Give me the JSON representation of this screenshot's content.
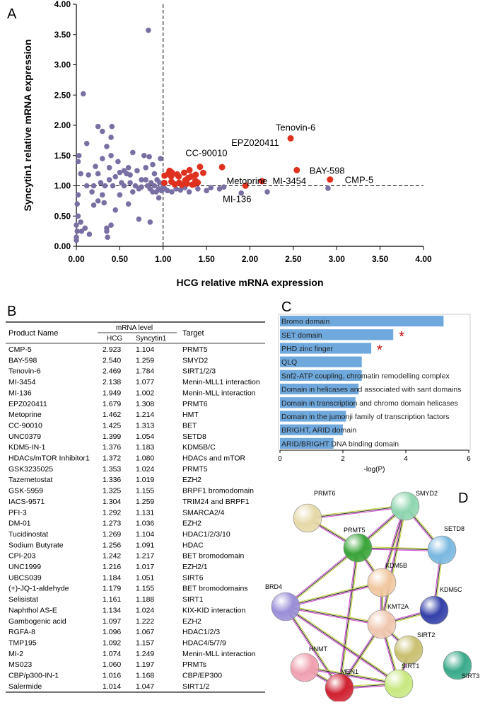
{
  "panel_labels": [
    "A",
    "B",
    "C",
    "D"
  ],
  "chart_data": [
    {
      "type": "scatter",
      "xlabel": "HCG relative mRNA expression",
      "ylabel": "Syncytin1 relative mRNA expression",
      "xlim": [
        0,
        4
      ],
      "ylim": [
        0,
        4
      ],
      "xticks": [
        {
          "value": 0,
          "label": "0.00"
        },
        {
          "value": 0.5,
          "label": "0.50"
        },
        {
          "value": 1,
          "label": "1.00"
        },
        {
          "value": 1.5,
          "label": "1.50"
        },
        {
          "value": 2,
          "label": "2.00"
        },
        {
          "value": 2.5,
          "label": "2.50"
        },
        {
          "value": 3,
          "label": "3.00"
        },
        {
          "value": 3.5,
          "label": "3.50"
        },
        {
          "value": 4,
          "label": "4.00"
        }
      ],
      "yticks": [
        {
          "value": 0,
          "label": "0.00"
        },
        {
          "value": 0.5,
          "label": "0.50"
        },
        {
          "value": 1,
          "label": "1.00"
        },
        {
          "value": 1.5,
          "label": "1.50"
        },
        {
          "value": 2,
          "label": "2.00"
        },
        {
          "value": 2.5,
          "label": "2.50"
        },
        {
          "value": 3,
          "label": "3.00"
        },
        {
          "value": 3.5,
          "label": "3.50"
        },
        {
          "value": 4,
          "label": "4.00"
        }
      ],
      "vlines": [
        1
      ],
      "hlines": [
        1
      ],
      "series": [
        {
          "color": "#7a6fa3",
          "x": [
            0,
            0,
            0.01,
            0,
            0.02,
            0.01,
            0.02,
            0.03,
            0.02,
            0.05,
            0.08,
            0.1,
            0.06,
            0.12,
            0.12,
            0.14,
            0.18,
            0.2,
            0.22,
            0.25,
            0.25,
            0.28,
            0.3,
            0.3,
            0.32,
            0.33,
            0.35,
            0.35,
            0.35,
            0.36,
            0.38,
            0.38,
            0.4,
            0.4,
            0.41,
            0.42,
            0.45,
            0.45,
            0.48,
            0.5,
            0.52,
            0.55,
            0.55,
            0.58,
            0.6,
            0.62,
            0.62,
            0.65,
            0.65,
            0.68,
            0.7,
            0.72,
            0.72,
            0.75,
            0.75,
            0.78,
            0.8,
            0.8,
            0.82,
            0.83,
            0.84,
            0.85,
            0.85,
            0.86,
            0.88,
            0.88,
            0.9,
            0.9,
            0.92,
            0.93,
            0.95,
            0.95,
            0.96,
            0.97,
            0.98,
            1,
            1.02,
            1.05,
            1.1,
            1.15,
            1.2,
            1.25,
            1.3,
            1.4,
            1.5,
            1.55,
            1.65,
            1.7,
            1.9,
            2.2,
            2.9,
            0.4,
            0.15,
            0.25,
            0.5,
            0.6,
            0.3,
            0.2,
            0.05
          ],
          "values": [
            0.1,
            0.15,
            0.25,
            0.35,
            0.5,
            0.7,
            0.85,
            1.5,
            1.4,
            1.2,
            2.52,
            0.3,
            0.25,
            1,
            1.7,
            1.18,
            0.9,
            0.68,
            1.32,
            1.98,
            1.2,
            1.05,
            0.85,
            1.9,
            0.72,
            1,
            1.65,
            0.3,
            0.25,
            0.15,
            1.3,
            1.1,
            1.5,
            1.8,
            1.98,
            1,
            0.6,
            1.15,
            1.4,
            1.22,
            1.05,
            1.25,
            1,
            1.2,
            1.3,
            1.18,
            1.05,
            1.55,
            0.9,
            1,
            1.25,
            0.95,
            0.45,
            1.1,
            0.98,
            1.5,
            1.3,
            1.1,
            1,
            3.57,
            1.48,
            0.95,
            0.4,
            1.05,
            1.35,
            0.9,
            1.2,
            1,
            0.9,
            1.1,
            0.95,
            0.8,
            1.05,
            1.45,
            0.92,
            0.98,
            0.95,
            0.92,
            0.9,
            0.95,
            0.93,
            0.97,
            0.9,
            0.95,
            0.92,
            0.97,
            0.95,
            0.98,
            0.88,
            0.9,
            0.96,
            0.35,
            0.2,
            0.75,
            0.85,
            0.7,
            1.45,
            1,
            0.4
          ]
        },
        {
          "color": "#e0311f",
          "x": [
            2.923,
            2.54,
            2.469,
            2.138,
            1.949,
            1.679,
            1.462,
            1.425,
            1.399,
            1.376,
            1.372,
            1.353,
            1.336,
            1.325,
            1.304,
            1.292,
            1.273,
            1.269,
            1.256,
            1.242,
            1.216,
            1.184,
            1.179,
            1.161,
            1.134,
            1.097,
            1.096,
            1.092,
            1.074,
            1.06,
            1.016,
            1.014
          ],
          "values": [
            1.104,
            1.259,
            1.784,
            1.077,
            1.002,
            1.308,
            1.214,
            1.313,
            1.054,
            1.183,
            1.08,
            1.024,
            1.019,
            1.155,
            1.259,
            1.131,
            1.036,
            1.104,
            1.091,
            1.217,
            1.017,
            1.051,
            1.155,
            1.188,
            1.024,
            1.222,
            1.067,
            1.157,
            1.249,
            1.197,
            1.168,
            1.047
          ]
        }
      ],
      "annotations": [
        {
          "text": "Tenovin-6",
          "x": 2.469,
          "y": 1.784
        },
        {
          "text": "CC-90010",
          "x": 1.425,
          "y": 1.313
        },
        {
          "text": "EPZ020411",
          "x": 1.679,
          "y": 1.308
        },
        {
          "text": "BAY-598",
          "x": 2.54,
          "y": 1.259
        },
        {
          "text": "Metoprine",
          "x": 1.462,
          "y": 1.214
        },
        {
          "text": "MI-3454",
          "x": 2.138,
          "y": 1.077
        },
        {
          "text": "CMP-5",
          "x": 2.923,
          "y": 1.104
        },
        {
          "text": "MI-136",
          "x": 1.949,
          "y": 1.002
        }
      ]
    },
    {
      "type": "barh",
      "color": "#6fa8dc",
      "xlabel": "-log(P)",
      "categories": [
        "Bromo domain",
        "SET domain",
        "PHD zinc finger",
        "QLQ",
        "Snf2-ATP coupling, chromatin remodelling complex",
        "Domain in helicases and associated with sant domains",
        "Domain in transcription and chromo domain helicases",
        "Domain in the jumonji family of transcription factors",
        "BRIGHT, ARID domain",
        "ARID/BRIGHT DNA binding domain"
      ],
      "values": [
        5.2,
        3.6,
        2.9,
        2.6,
        2.6,
        2.5,
        2.4,
        2.1,
        2.0,
        1.7
      ],
      "xlim": [
        0,
        6
      ],
      "xticks": [
        0,
        2,
        4,
        6
      ],
      "annotations": [
        {
          "text": "*",
          "category": "SET domain"
        },
        {
          "text": "*",
          "category": "PHD zinc finger"
        }
      ]
    }
  ],
  "table": {
    "header": [
      "Product Name",
      "mRNA level",
      "HCG",
      "Syncytin1",
      "Target"
    ],
    "rows": [
      [
        "CMP-5",
        "2.923",
        "1.104",
        "PRMT5"
      ],
      [
        "BAY-598",
        "2.540",
        "1.259",
        "SMYD2"
      ],
      [
        "Tenovin-6",
        "2.469",
        "1.784",
        "SIRT1/2/3"
      ],
      [
        "MI-3454",
        "2.138",
        "1.077",
        "Menin-MLL1 interaction"
      ],
      [
        "MI-136",
        "1.949",
        "1.002",
        "Menin-MLL interaction"
      ],
      [
        "EPZ020411",
        "1.679",
        "1.308",
        "PRMT6"
      ],
      [
        "Metoprine",
        "1.462",
        "1.214",
        "HMT"
      ],
      [
        "CC-90010",
        "1.425",
        "1.313",
        "BET"
      ],
      [
        "UNC0379",
        "1.399",
        "1.054",
        "SETD8"
      ],
      [
        "KDM5-IN-1",
        "1.376",
        "1.183",
        "KDM5B/C"
      ],
      [
        "HDACs/mTOR Inhibitor1",
        "1.372",
        "1.080",
        "HDACs and mTOR"
      ],
      [
        "GSK3235025",
        "1.353",
        "1.024",
        "PRMT5"
      ],
      [
        "Tazemetostat",
        "1.336",
        "1.019",
        "EZH2"
      ],
      [
        "GSK-5959",
        "1.325",
        "1.155",
        "BRPF1 bromodomain"
      ],
      [
        "IACS-9571",
        "1.304",
        "1.259",
        "TRIM24 and BRPF1"
      ],
      [
        "PFI-3",
        "1.292",
        "1.131",
        "SMARCA2/4"
      ],
      [
        "DM-01",
        "1.273",
        "1.036",
        "EZH2"
      ],
      [
        "Tucidinostat",
        "1.269",
        "1.104",
        "HDAC1/2/3/10"
      ],
      [
        "Sodium Butyrate",
        "1.256",
        "1.091",
        "HDAC"
      ],
      [
        "CPI-203",
        "1.242",
        "1.217",
        "BET bromodomain"
      ],
      [
        "UNC1999",
        "1.216",
        "1.017",
        "EZH2/1"
      ],
      [
        "UBCS039",
        "1.184",
        "1.051",
        "SIRT6"
      ],
      [
        "(+)-JQ-1-aldehyde",
        "1.179",
        "1.155",
        "BET bromodomains"
      ],
      [
        "Selisistat",
        "1.161",
        "1.188",
        "SIRT1"
      ],
      [
        "Naphthol AS-E",
        "1.134",
        "1.024",
        "KIX-KID interaction"
      ],
      [
        "Gambogenic acid",
        "1.097",
        "1.222",
        "EZH2"
      ],
      [
        "RGFA-8",
        "1.096",
        "1.067",
        "HDAC1/2/3"
      ],
      [
        "TMP195",
        "1.092",
        "1.157",
        "HDAC4/5/7/9"
      ],
      [
        "MI-2",
        "1.074",
        "1.249",
        "Menin-MLL interaction"
      ],
      [
        "MS023",
        "1.060",
        "1.197",
        "PRMTs"
      ],
      [
        "CBP/p300-IN-1",
        "1.016",
        "1.168",
        "CBP/EP300"
      ],
      [
        "Salermide",
        "1.014",
        "1.047",
        "SIRT1/2"
      ]
    ]
  },
  "network": {
    "nodes": [
      {
        "label": "PRMT6",
        "color": "#e6d9a8"
      },
      {
        "label": "SMYD2",
        "color": "#8fd6b0"
      },
      {
        "label": "PRMT5",
        "color": "#3aa53a"
      },
      {
        "label": "SETD8",
        "color": "#7ab8e0"
      },
      {
        "label": "KDM5B",
        "color": "#f0c8a0"
      },
      {
        "label": "BRD4",
        "color": "#9b8fd8"
      },
      {
        "label": "KDM5C",
        "color": "#3340a8"
      },
      {
        "label": "KMT2A",
        "color": "#f0c8b0"
      },
      {
        "label": "SIRT2",
        "color": "#c9c070"
      },
      {
        "label": "HNMT",
        "color": "#f0a0b0"
      },
      {
        "label": "SIRT3",
        "color": "#3aaa8a"
      },
      {
        "label": "SIRT1",
        "color": "#c8e880"
      },
      {
        "label": "MEN1",
        "color": "#d02030"
      }
    ]
  }
}
